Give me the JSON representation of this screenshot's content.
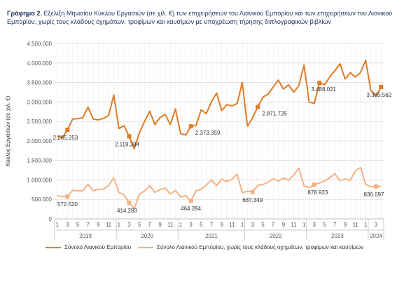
{
  "header": {
    "title_bold": "Γράφημα 2.",
    "title_rest": "Εξέλιξη Μηνιαίου Κύκλου Εργασιών (σε χιλ. €) των επιχειρήσεων του Λιανικού Εμπορίου και των επιχειρήσεων του Λιανικού Εμπορίου, χωρίς τους κλάδους οχημάτων, τροφίμων και καυσίμων με υποχρέωση τήρησης διπλογραφικών βιβλίων"
  },
  "chart_data": {
    "type": "line",
    "ylabel": "Κύκλος Εργασιών (σε χιλ. €)",
    "ylim": [
      0,
      4500000
    ],
    "yticks": [
      0,
      500000,
      1000000,
      1500000,
      2000000,
      2500000,
      3000000,
      3500000,
      4000000,
      4500000
    ],
    "ytick_labels": [
      "0",
      "500.000",
      "1.000.000",
      "1.500.000",
      "2.000.000",
      "2.500.000",
      "3.000.000",
      "3.500.000",
      "4.000.000",
      "4.500.000"
    ],
    "x_month_labels": [
      "1",
      "3",
      "5",
      "7",
      "9",
      "11",
      "1",
      "3",
      "5",
      "7",
      "9",
      "11",
      "1",
      "3",
      "5",
      "7",
      "9",
      "11",
      "1",
      "3",
      "5",
      "7",
      "9",
      "11",
      "1",
      "3",
      "5",
      "7",
      "9",
      "11",
      "1",
      "3"
    ],
    "years": [
      "2019",
      "2020",
      "2021",
      "2022",
      "2023",
      "2024"
    ],
    "grid": true,
    "legend_position": "bottom",
    "series": [
      {
        "name": "Σύνολο Λιανικού Εμπορίου",
        "color": "#e07b24",
        "width": 2,
        "values": [
          2120000,
          2080000,
          2285253,
          2560000,
          2570000,
          2600000,
          2870000,
          2560000,
          2540000,
          2580000,
          2650000,
          3180000,
          2320000,
          2390000,
          2119384,
          1800000,
          2220000,
          2500000,
          2760000,
          2420000,
          2600000,
          2680000,
          2420000,
          2820000,
          2190000,
          2150000,
          2373359,
          2400000,
          2800000,
          2700000,
          3000000,
          3230000,
          2780000,
          2930000,
          2900000,
          2960000,
          3500000,
          2380000,
          2590000,
          2871725,
          3120000,
          3200000,
          3380000,
          3560000,
          3330000,
          3440000,
          3250000,
          3420000,
          3950000,
          3000000,
          2960000,
          3488021,
          3440000,
          3640000,
          3800000,
          3980000,
          3590000,
          3750000,
          3640000,
          3760000,
          4070000,
          3300000,
          3150000,
          3385562
        ],
        "labels": [
          {
            "index": 2,
            "text": "2.285.253",
            "dx": -3,
            "dy": 14
          },
          {
            "index": 14,
            "text": "2.119.384",
            "dx": -3,
            "dy": 14
          },
          {
            "index": 26,
            "text": "2.373.359",
            "dx": 24,
            "dy": 12
          },
          {
            "index": 39,
            "text": "2.871.725",
            "dx": 24,
            "dy": 12
          },
          {
            "index": 51,
            "text": "3.488.021",
            "dx": 6,
            "dy": 12
          },
          {
            "index": 63,
            "text": "3.385.562",
            "dx": -3,
            "dy": 14
          }
        ]
      },
      {
        "name": "Σύνολο Λιανικού Εμπορίου, χωρίς τους κλάδους οχημάτων, τροφίμων και καυσίμων",
        "color": "#f4b183",
        "width": 2,
        "values": [
          600000,
          570000,
          572520,
          730000,
          720000,
          720000,
          890000,
          720000,
          760000,
          760000,
          860000,
          1050000,
          680000,
          620000,
          414283,
          260000,
          630000,
          720000,
          850000,
          680000,
          750000,
          790000,
          640000,
          730000,
          560000,
          600000,
          464284,
          720000,
          760000,
          870000,
          1000000,
          850000,
          1020000,
          960000,
          1020000,
          1150000,
          670000,
          710000,
          687349,
          860000,
          880000,
          940000,
          1030000,
          970000,
          1050000,
          990000,
          1130000,
          1300000,
          850000,
          800000,
          878923,
          920000,
          970000,
          1050000,
          1160000,
          980000,
          1020000,
          990000,
          1230000,
          1320000,
          880000,
          830000,
          830097,
          830000
        ],
        "labels": [
          {
            "index": 2,
            "text": "572.520",
            "dx": 0,
            "dy": 14
          },
          {
            "index": 14,
            "text": "414.283",
            "dx": -3,
            "dy": 14
          },
          {
            "index": 26,
            "text": "464.284",
            "dx": 0,
            "dy": 14
          },
          {
            "index": 38,
            "text": "687.349",
            "dx": 0,
            "dy": 14
          },
          {
            "index": 50,
            "text": "878.923",
            "dx": 5,
            "dy": 14
          },
          {
            "index": 62,
            "text": "830.097",
            "dx": -3,
            "dy": 14
          }
        ]
      }
    ]
  }
}
